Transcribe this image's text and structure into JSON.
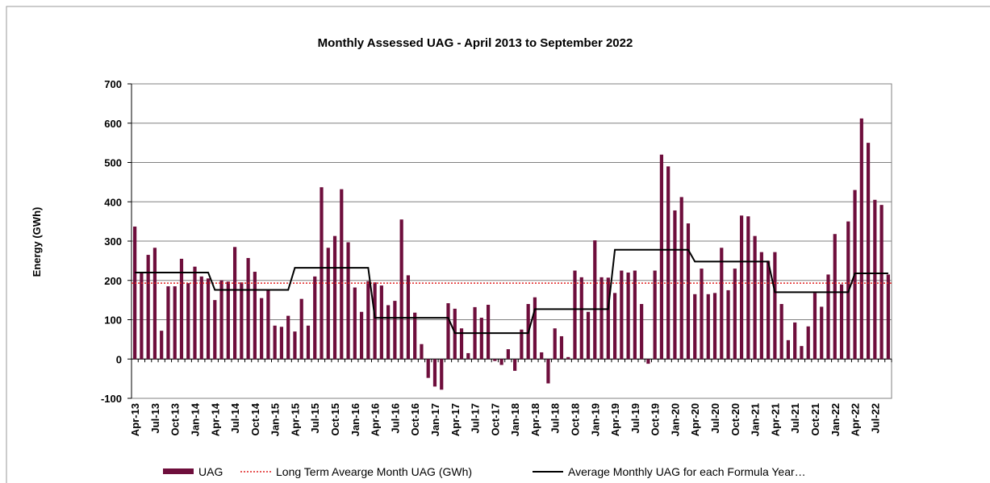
{
  "chart_data": {
    "type": "bar",
    "title": "Monthly Assessed UAG - April 2013 to September 2022",
    "y_label": "Energy (GWh)",
    "categories": [
      "Apr-13",
      null,
      null,
      "Jul-13",
      null,
      null,
      "Oct-13",
      null,
      null,
      "Jan-14",
      null,
      null,
      "Apr-14",
      null,
      null,
      "Jul-14",
      null,
      null,
      "Oct-14",
      null,
      null,
      "Jan-15",
      null,
      null,
      "Apr-15",
      null,
      null,
      "Jul-15",
      null,
      null,
      "Oct-15",
      null,
      null,
      "Jan-16",
      null,
      null,
      "Apr-16",
      null,
      null,
      "Jul-16",
      null,
      null,
      "Oct-16",
      null,
      null,
      "Jan-17",
      null,
      null,
      "Apr-17",
      null,
      null,
      "Jul-17",
      null,
      null,
      "Oct-17",
      null,
      null,
      "Jan-18",
      null,
      null,
      "Apr-18",
      null,
      null,
      "Jul-18",
      null,
      null,
      "Oct-18",
      null,
      null,
      "Jan-19",
      null,
      null,
      "Apr-19",
      null,
      null,
      "Jul-19",
      null,
      null,
      "Oct-19",
      null,
      null,
      "Jan-20",
      null,
      null,
      "Apr-20",
      null,
      null,
      "Jul-20",
      null,
      null,
      "Oct-20",
      null,
      null,
      "Jan-21",
      null,
      null,
      "Apr-21",
      null,
      null,
      "Jul-21",
      null,
      null,
      "Oct-21",
      null,
      null,
      "Jan-22",
      null,
      null,
      "Apr-22",
      null,
      null,
      "Jul-22",
      null,
      null
    ],
    "series": [
      {
        "name": "UAG",
        "color": "#6e0e3c",
        "type": "bar",
        "values": [
          337,
          222,
          265,
          283,
          72,
          185,
          185,
          255,
          193,
          235,
          210,
          205,
          150,
          200,
          197,
          285,
          195,
          257,
          222,
          155,
          177,
          85,
          82,
          110,
          70,
          153,
          85,
          210,
          437,
          283,
          313,
          432,
          297,
          182,
          120,
          198,
          195,
          187,
          137,
          148,
          355,
          213,
          118,
          38,
          -48,
          -70,
          -78,
          142,
          128,
          78,
          15,
          132,
          105,
          138,
          -5,
          -15,
          25,
          -30,
          75,
          140,
          157,
          17,
          -62,
          78,
          58,
          5,
          225,
          208,
          120,
          302,
          208,
          207,
          168,
          225,
          220,
          225,
          140,
          -12,
          225,
          520,
          490,
          378,
          412,
          345,
          165,
          230,
          165,
          168,
          283,
          175,
          230,
          365,
          363,
          313,
          272,
          250,
          272,
          140,
          48,
          93,
          33,
          83,
          168,
          133,
          215,
          318,
          190,
          350,
          430,
          612,
          550,
          405,
          392,
          215
        ]
      },
      {
        "name": "Average Monthly UAG for each Formula Year…",
        "color": "#000000",
        "type": "line",
        "values": [
          220,
          220,
          220,
          220,
          220,
          220,
          220,
          220,
          220,
          220,
          220,
          220,
          176,
          176,
          176,
          176,
          176,
          176,
          176,
          176,
          176,
          176,
          176,
          176,
          232,
          232,
          232,
          232,
          232,
          232,
          232,
          232,
          232,
          232,
          232,
          232,
          105,
          105,
          105,
          105,
          105,
          105,
          105,
          105,
          105,
          105,
          105,
          105,
          66,
          66,
          66,
          66,
          66,
          66,
          66,
          66,
          66,
          66,
          66,
          66,
          127,
          127,
          127,
          127,
          127,
          127,
          127,
          127,
          127,
          127,
          127,
          127,
          278,
          278,
          278,
          278,
          278,
          278,
          278,
          278,
          278,
          278,
          278,
          278,
          248,
          248,
          248,
          248,
          248,
          248,
          248,
          248,
          248,
          248,
          248,
          248,
          170,
          170,
          170,
          170,
          170,
          170,
          170,
          170,
          170,
          170,
          170,
          170,
          218,
          218,
          218,
          218,
          218,
          218
        ]
      }
    ],
    "reference_line": {
      "name": "Long Term Avearge Month UAG (GWh)",
      "color": "#e02020",
      "value": 193
    },
    "ylim": [
      -100,
      700
    ],
    "yticks": [
      -100,
      0,
      100,
      200,
      300,
      400,
      500,
      600,
      700
    ],
    "grid": true,
    "legend": "bottom"
  }
}
